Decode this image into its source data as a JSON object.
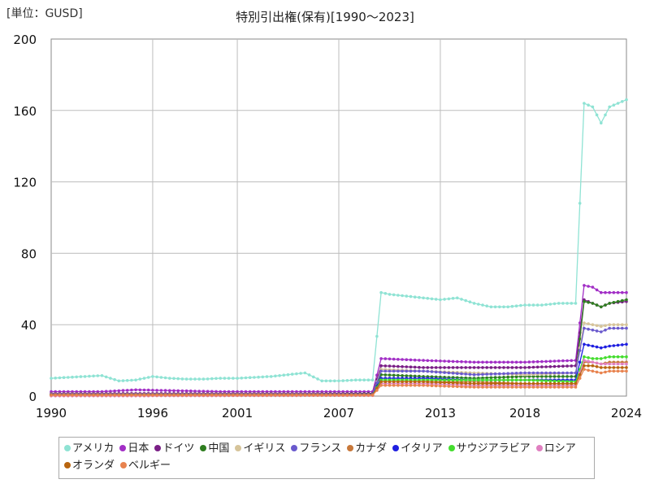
{
  "header": {
    "unit": "[単位：GUSD]",
    "title": "特別引出権(保有)[1990～2023]"
  },
  "chart_data": {
    "type": "line",
    "title": "特別引出権(保有)[1990～2023]",
    "unit": "[単位：GUSD]",
    "xlabel": "",
    "ylabel": "",
    "xlim": [
      1990,
      2024
    ],
    "ylim": [
      0,
      200
    ],
    "x_ticks": [
      "1990",
      "1996",
      "2001",
      "2007",
      "2013",
      "2018",
      "2024"
    ],
    "y_ticks": [
      "0",
      "40",
      "80",
      "120",
      "160",
      "200"
    ],
    "grid": true,
    "legend_position": "bottom",
    "series": [
      {
        "name": "アメリカ",
        "color": "#8fe3d4",
        "points": [
          [
            1990,
            10
          ],
          [
            1991,
            10.5
          ],
          [
            1992,
            11
          ],
          [
            1993,
            11.5
          ],
          [
            1994,
            8.5
          ],
          [
            1995,
            9
          ],
          [
            1996,
            11
          ],
          [
            1997,
            10
          ],
          [
            1998,
            9.5
          ],
          [
            1999,
            9.5
          ],
          [
            2000,
            10
          ],
          [
            2001,
            10
          ],
          [
            2002,
            10.5
          ],
          [
            2003,
            11
          ],
          [
            2004,
            12
          ],
          [
            2005,
            13
          ],
          [
            2006,
            8.5
          ],
          [
            2007,
            8.5
          ],
          [
            2008,
            9
          ],
          [
            2009,
            9
          ],
          [
            2009.5,
            58
          ],
          [
            2010,
            57
          ],
          [
            2011,
            56
          ],
          [
            2012,
            55
          ],
          [
            2013,
            54
          ],
          [
            2014,
            55
          ],
          [
            2015,
            52
          ],
          [
            2016,
            50
          ],
          [
            2017,
            50
          ],
          [
            2018,
            51
          ],
          [
            2019,
            51
          ],
          [
            2020,
            52
          ],
          [
            2021,
            52
          ],
          [
            2021.5,
            164
          ],
          [
            2022,
            162
          ],
          [
            2022.5,
            153
          ],
          [
            2023,
            162
          ],
          [
            2024,
            166
          ]
        ]
      },
      {
        "name": "日本",
        "color": "#a22fc6",
        "points": [
          [
            1990,
            2.5
          ],
          [
            1993,
            2.5
          ],
          [
            1995,
            3.5
          ],
          [
            2000,
            2.5
          ],
          [
            2005,
            2.5
          ],
          [
            2009,
            2.5
          ],
          [
            2009.5,
            21
          ],
          [
            2012,
            20
          ],
          [
            2015,
            19
          ],
          [
            2018,
            19
          ],
          [
            2021,
            20
          ],
          [
            2021.5,
            62
          ],
          [
            2022,
            61
          ],
          [
            2022.5,
            58
          ],
          [
            2023,
            58
          ],
          [
            2024,
            58
          ]
        ]
      },
      {
        "name": "ドイツ",
        "color": "#7a1f86",
        "points": [
          [
            1990,
            1.5
          ],
          [
            1995,
            1.5
          ],
          [
            2000,
            1.5
          ],
          [
            2005,
            1.5
          ],
          [
            2009,
            1.5
          ],
          [
            2009.5,
            17
          ],
          [
            2012,
            16
          ],
          [
            2015,
            16
          ],
          [
            2018,
            16
          ],
          [
            2021,
            17
          ],
          [
            2021.5,
            54
          ],
          [
            2022,
            52
          ],
          [
            2022.5,
            50
          ],
          [
            2023,
            52
          ],
          [
            2024,
            53
          ]
        ]
      },
      {
        "name": "中国",
        "color": "#2e7d1f",
        "points": [
          [
            1990,
            0.6
          ],
          [
            2000,
            0.8
          ],
          [
            2005,
            1
          ],
          [
            2009,
            1.2
          ],
          [
            2009.5,
            12
          ],
          [
            2012,
            11
          ],
          [
            2015,
            10
          ],
          [
            2018,
            11
          ],
          [
            2021,
            11
          ],
          [
            2021.5,
            53
          ],
          [
            2022,
            52
          ],
          [
            2022.5,
            50
          ],
          [
            2023,
            52
          ],
          [
            2024,
            54
          ]
        ]
      },
      {
        "name": "イギリス",
        "color": "#d6c49a",
        "points": [
          [
            1990,
            1.2
          ],
          [
            2000,
            1.2
          ],
          [
            2005,
            1.2
          ],
          [
            2009,
            1
          ],
          [
            2009.5,
            15
          ],
          [
            2012,
            14
          ],
          [
            2015,
            13
          ],
          [
            2018,
            12
          ],
          [
            2021,
            13
          ],
          [
            2021.5,
            41
          ],
          [
            2022,
            40
          ],
          [
            2022.5,
            39
          ],
          [
            2023,
            40
          ],
          [
            2024,
            40
          ]
        ]
      },
      {
        "name": "フランス",
        "color": "#6a5acd",
        "points": [
          [
            1990,
            1
          ],
          [
            2000,
            1
          ],
          [
            2005,
            1
          ],
          [
            2009,
            1
          ],
          [
            2009.5,
            14
          ],
          [
            2012,
            14
          ],
          [
            2015,
            12
          ],
          [
            2018,
            13
          ],
          [
            2021,
            13
          ],
          [
            2021.5,
            38
          ],
          [
            2022,
            37
          ],
          [
            2022.5,
            36
          ],
          [
            2023,
            38
          ],
          [
            2024,
            38
          ]
        ]
      },
      {
        "name": "カナダ",
        "color": "#c8783a",
        "points": [
          [
            1990,
            0.8
          ],
          [
            2000,
            0.8
          ],
          [
            2005,
            0.8
          ],
          [
            2009,
            0.8
          ],
          [
            2009.5,
            8
          ],
          [
            2012,
            8
          ],
          [
            2015,
            8
          ],
          [
            2018,
            7
          ],
          [
            2021,
            7
          ],
          [
            2021.5,
            19
          ],
          [
            2022,
            19
          ],
          [
            2022.5,
            18
          ],
          [
            2023,
            19
          ],
          [
            2024,
            19
          ]
        ]
      },
      {
        "name": "イタリア",
        "color": "#1f1fe0",
        "points": [
          [
            1990,
            0.7
          ],
          [
            2000,
            0.7
          ],
          [
            2005,
            0.7
          ],
          [
            2009,
            0.7
          ],
          [
            2009.5,
            10
          ],
          [
            2012,
            10
          ],
          [
            2015,
            9
          ],
          [
            2018,
            9
          ],
          [
            2021,
            9
          ],
          [
            2021.5,
            29
          ],
          [
            2022,
            28
          ],
          [
            2022.5,
            27
          ],
          [
            2023,
            28
          ],
          [
            2024,
            29
          ]
        ]
      },
      {
        "name": "サウジアラビア",
        "color": "#44dd2e",
        "points": [
          [
            1990,
            0.6
          ],
          [
            2000,
            0.6
          ],
          [
            2005,
            0.6
          ],
          [
            2009,
            0.6
          ],
          [
            2009.5,
            9
          ],
          [
            2012,
            9
          ],
          [
            2015,
            9
          ],
          [
            2018,
            9
          ],
          [
            2021,
            8
          ],
          [
            2021.5,
            22
          ],
          [
            2022,
            21
          ],
          [
            2022.5,
            21
          ],
          [
            2023,
            22
          ],
          [
            2024,
            22
          ]
        ]
      },
      {
        "name": "ロシア",
        "color": "#e07fc0",
        "points": [
          [
            1990,
            0.1
          ],
          [
            2000,
            0.2
          ],
          [
            2005,
            0.3
          ],
          [
            2009,
            0.3
          ],
          [
            2009.5,
            7
          ],
          [
            2012,
            7
          ],
          [
            2015,
            6
          ],
          [
            2018,
            6
          ],
          [
            2021,
            6
          ],
          [
            2021.5,
            20
          ],
          [
            2022,
            19
          ],
          [
            2022.5,
            18
          ],
          [
            2023,
            18
          ],
          [
            2024,
            18
          ]
        ]
      },
      {
        "name": "オランダ",
        "color": "#b8650f",
        "points": [
          [
            1990,
            0.6
          ],
          [
            2000,
            0.6
          ],
          [
            2005,
            0.6
          ],
          [
            2009,
            0.6
          ],
          [
            2009.5,
            8
          ],
          [
            2012,
            8
          ],
          [
            2015,
            7
          ],
          [
            2018,
            7
          ],
          [
            2021,
            7
          ],
          [
            2021.5,
            17
          ],
          [
            2022,
            17
          ],
          [
            2022.5,
            16
          ],
          [
            2023,
            16
          ],
          [
            2024,
            16
          ]
        ]
      },
      {
        "name": "ベルギー",
        "color": "#e8834f",
        "points": [
          [
            1990,
            0.5
          ],
          [
            2000,
            0.5
          ],
          [
            2005,
            0.5
          ],
          [
            2009,
            0.5
          ],
          [
            2009.5,
            6
          ],
          [
            2012,
            6
          ],
          [
            2015,
            5
          ],
          [
            2018,
            5
          ],
          [
            2021,
            5
          ],
          [
            2021.5,
            15
          ],
          [
            2022,
            14
          ],
          [
            2022.5,
            13
          ],
          [
            2023,
            14
          ],
          [
            2024,
            14
          ]
        ]
      }
    ]
  }
}
